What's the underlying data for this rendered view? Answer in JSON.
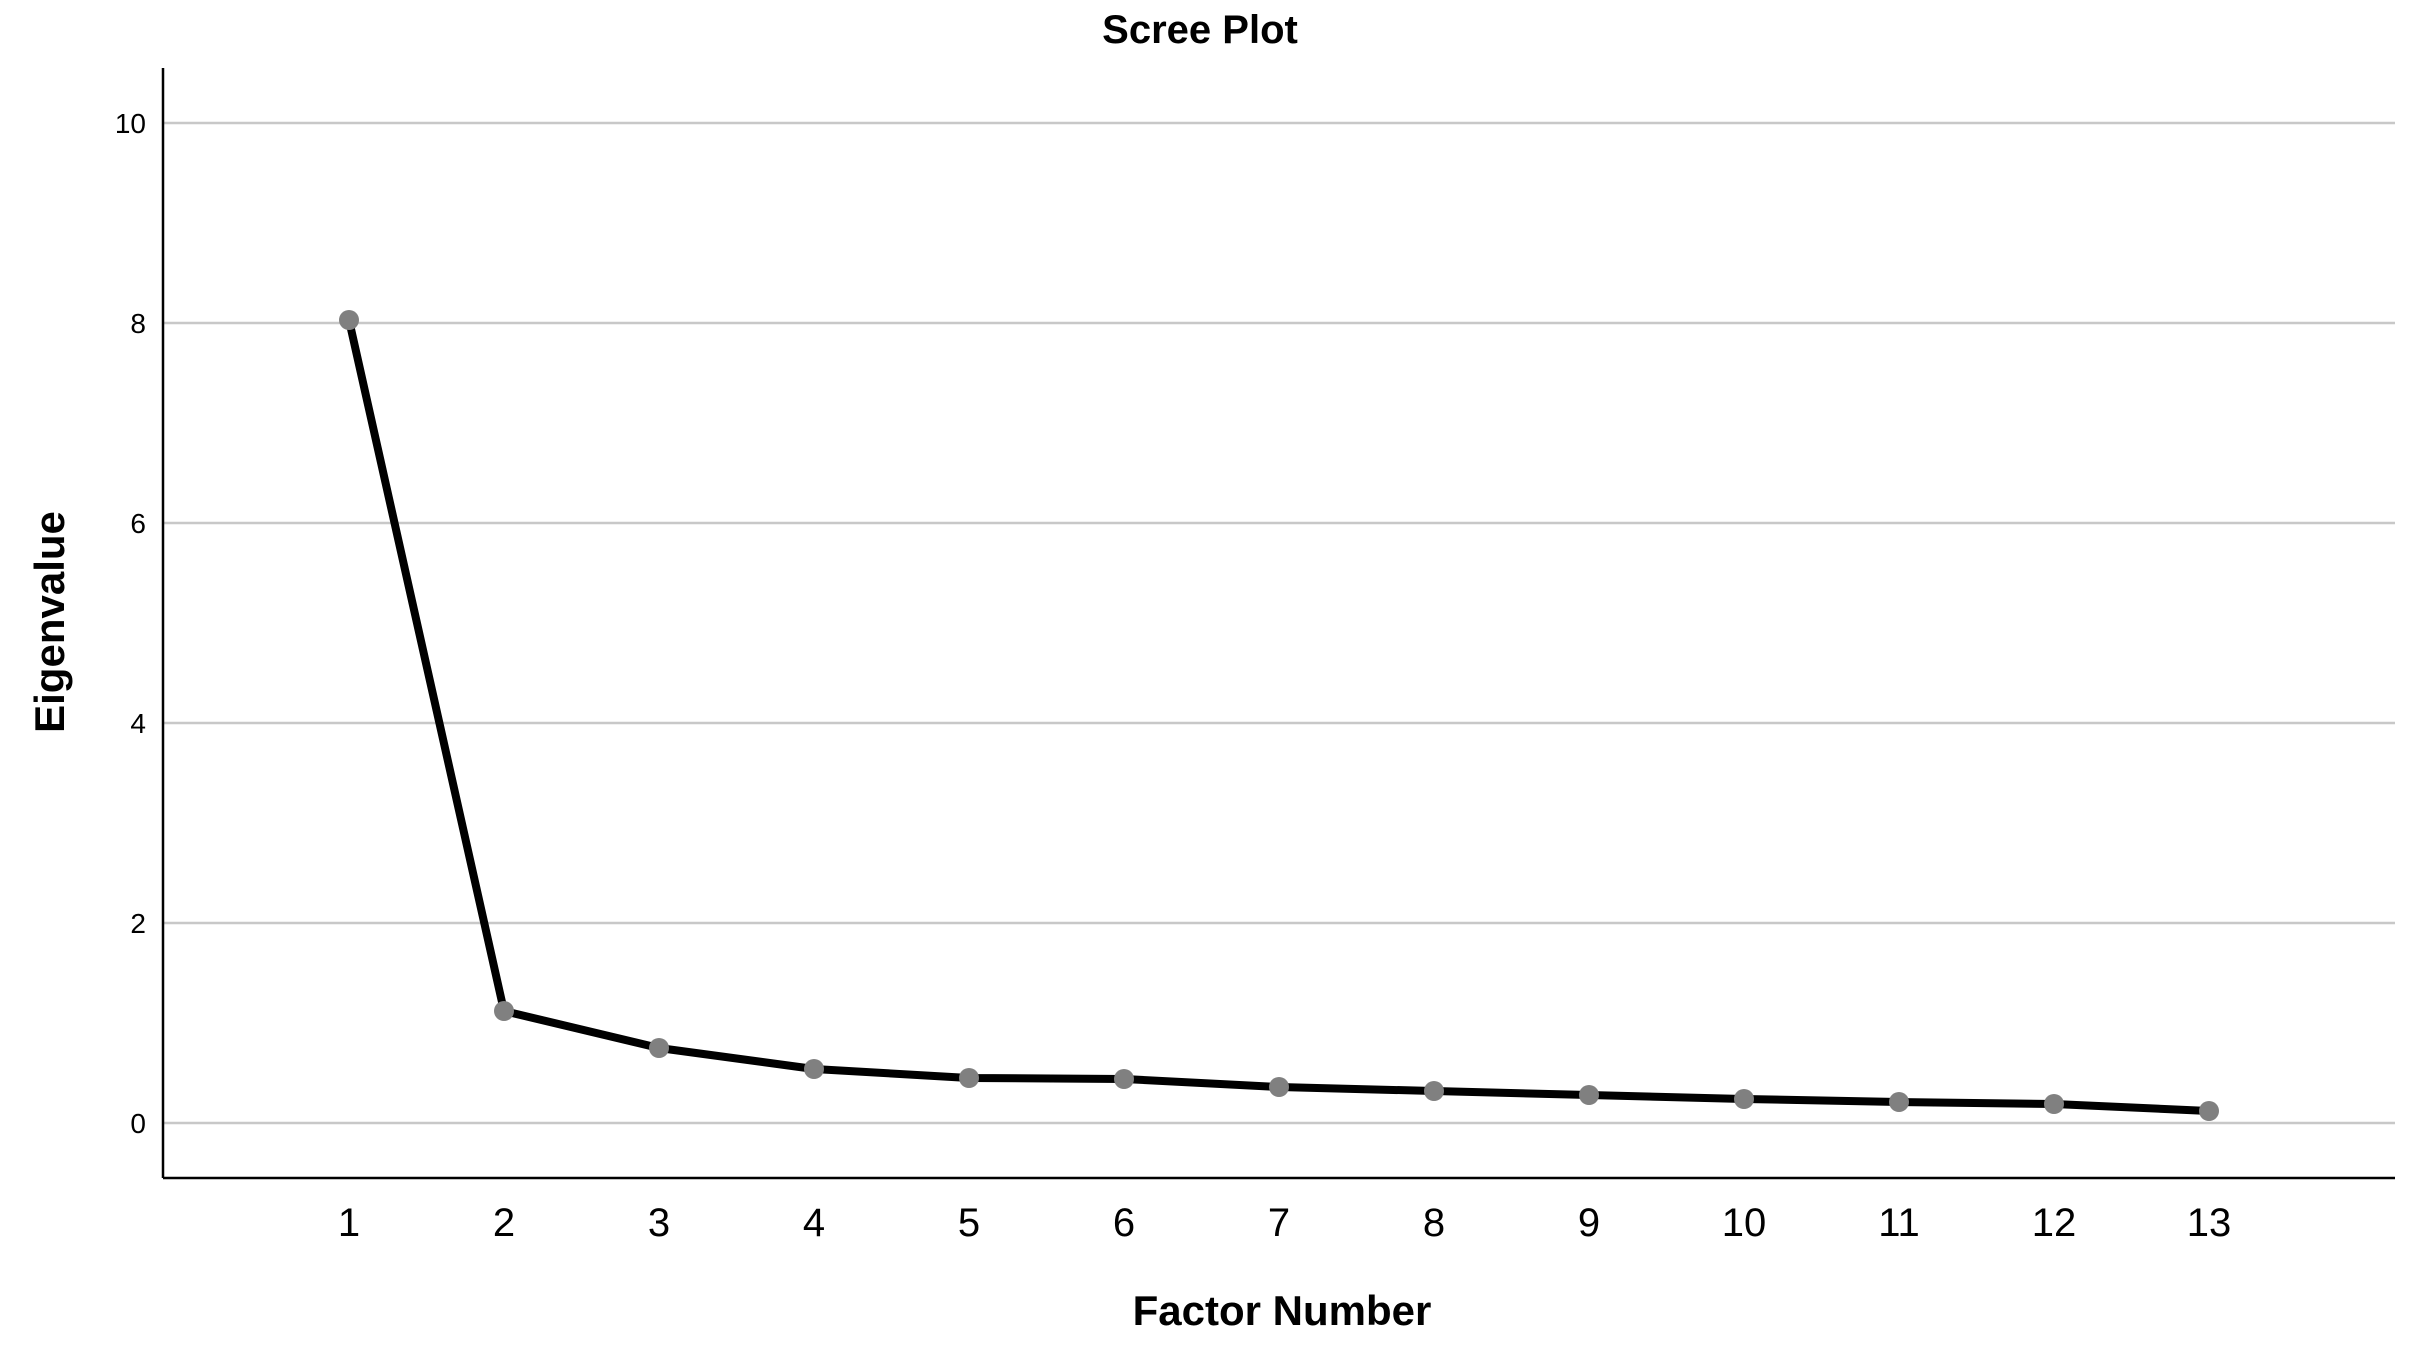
{
  "chart_data": {
    "type": "line",
    "title": "Scree Plot",
    "xlabel": "Factor Number",
    "ylabel": "Eigenvalue",
    "x": [
      1,
      2,
      3,
      4,
      5,
      6,
      7,
      8,
      9,
      10,
      11,
      12,
      13
    ],
    "x_tick_labels": [
      "1",
      "2",
      "3",
      "4",
      "5",
      "6",
      "7",
      "8",
      "9",
      "10",
      "11",
      "12",
      "13"
    ],
    "y_ticks": [
      0,
      2,
      4,
      6,
      8,
      10
    ],
    "y_tick_labels": [
      "0",
      "2",
      "4",
      "6",
      "8",
      "10"
    ],
    "ylim": [
      -0.55,
      10.55
    ],
    "xlim": [
      -0.2,
      14.2
    ],
    "grid": "horizontal",
    "legend": "none",
    "series": [
      {
        "values": [
          8.03,
          1.12,
          0.75,
          0.54,
          0.45,
          0.44,
          0.36,
          0.32,
          0.28,
          0.24,
          0.21,
          0.19,
          0.12
        ]
      }
    ],
    "colors": {
      "line": "#000000",
      "marker": "#808080",
      "grid": "#c8c8c8",
      "axis": "#000000"
    }
  }
}
